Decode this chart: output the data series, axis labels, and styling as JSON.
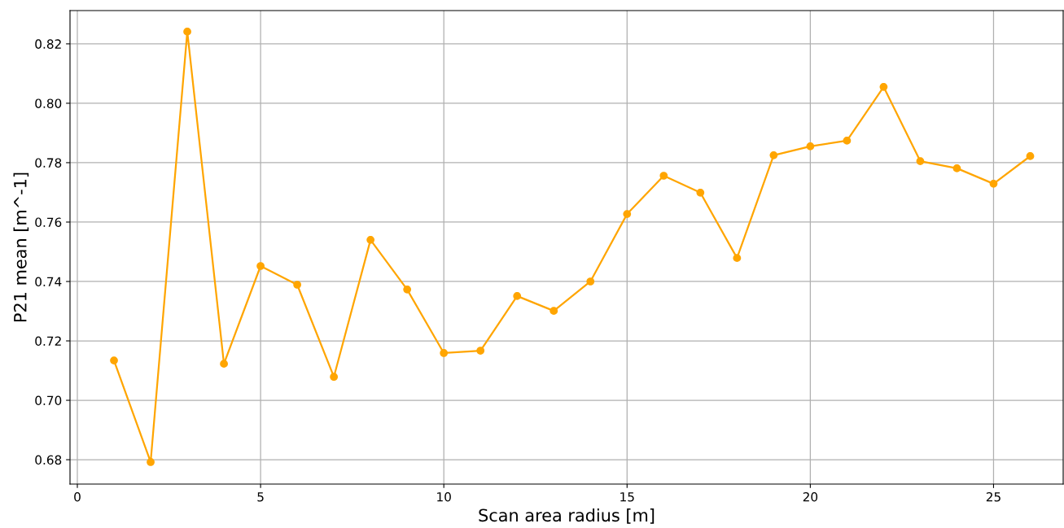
{
  "chart_data": {
    "type": "line",
    "xlabel": "Scan area radius [m]",
    "ylabel": "P21 mean [m^-1]",
    "x": [
      1,
      2,
      3,
      4,
      5,
      6,
      7,
      8,
      9,
      10,
      11,
      12,
      13,
      14,
      15,
      16,
      17,
      18,
      19,
      20,
      21,
      22,
      23,
      24,
      25,
      26
    ],
    "series": [
      {
        "color": "#ffa500",
        "values": [
          0.7134,
          0.6792,
          0.8241,
          0.7123,
          0.7452,
          0.7389,
          0.7079,
          0.754,
          0.7373,
          0.7159,
          0.7167,
          0.7351,
          0.7301,
          0.74,
          0.7627,
          0.7756,
          0.7699,
          0.7479,
          0.7825,
          0.7855,
          0.7874,
          0.8055,
          0.7805,
          0.7781,
          0.7729,
          0.7822
        ]
      }
    ],
    "xlim": [
      -0.2,
      26.9
    ],
    "ylim": [
      0.6718,
      0.8312
    ],
    "xticks": [
      0,
      5,
      10,
      15,
      20,
      25
    ],
    "yticks": [
      {
        "value": 0.68,
        "label": "0.68"
      },
      {
        "value": 0.7,
        "label": "0.70"
      },
      {
        "value": 0.72,
        "label": "0.72"
      },
      {
        "value": 0.74,
        "label": "0.74"
      },
      {
        "value": 0.76,
        "label": "0.76"
      },
      {
        "value": 0.78,
        "label": "0.78"
      },
      {
        "value": 0.8,
        "label": "0.80"
      },
      {
        "value": 0.82,
        "label": "0.82"
      }
    ],
    "grid": true,
    "marker": "circle",
    "line_style": "solid",
    "legend": false
  }
}
